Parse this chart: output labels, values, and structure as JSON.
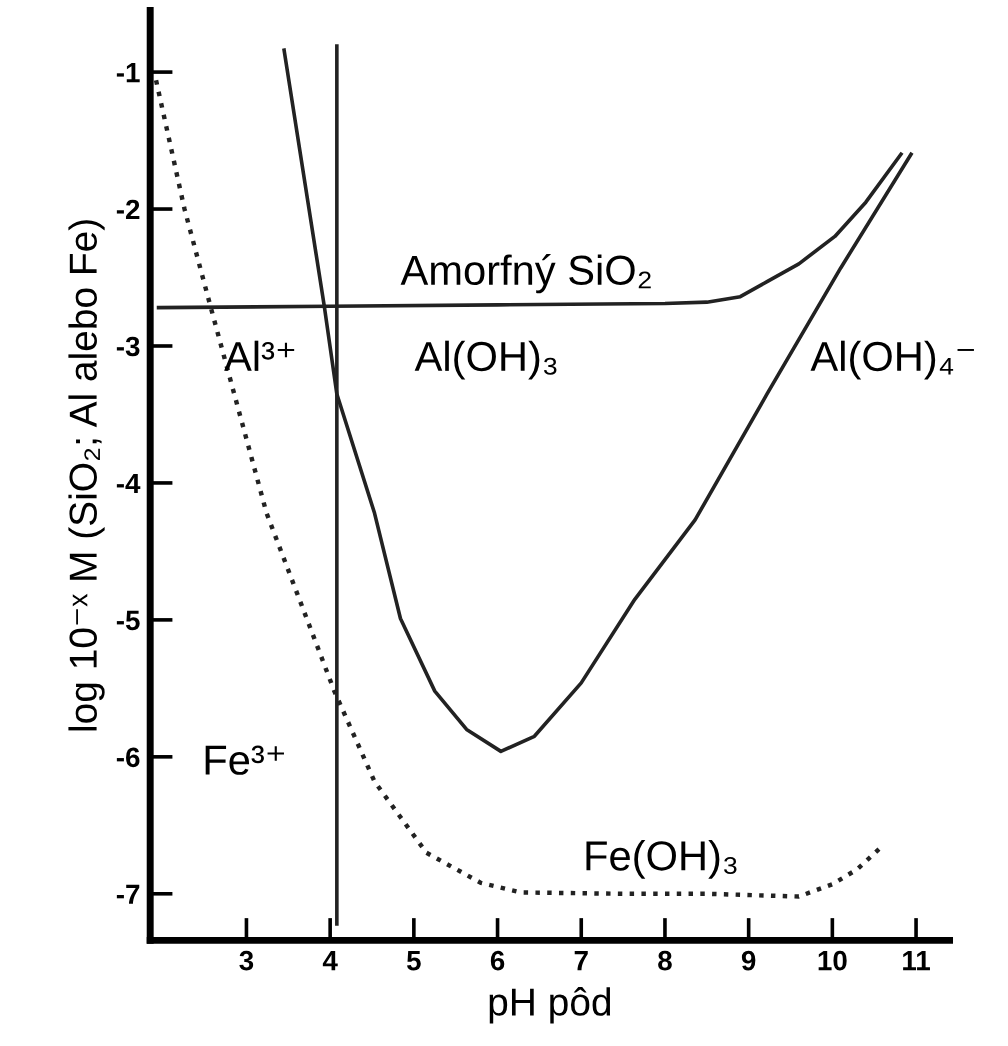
{
  "chart_data": {
    "type": "line",
    "xlabel": "pH pôd",
    "ylabel": "log 10⁻ˣ M (SiO₂; Al alebo Fe)",
    "xlim": [
      1.85,
      11.4
    ],
    "ylim": [
      -7.34,
      -0.55
    ],
    "xticks": [
      3,
      4,
      5,
      6,
      7,
      8,
      9,
      10,
      11
    ],
    "yticks": [
      -7,
      -6,
      -5,
      -4,
      -3,
      -2,
      -1
    ],
    "grid": false,
    "legend": false,
    "series": [
      {
        "color": "#222222",
        "line_style": "dotted",
        "x": [
          1.92,
          2.26,
          2.57,
          3.24,
          4.05,
          4.53,
          5.15,
          5.8,
          6.28,
          7.5,
          8.5,
          9.6,
          10.0,
          10.3,
          10.6
        ],
        "values": [
          -1.06,
          -2.0,
          -2.71,
          -4.22,
          -5.52,
          -6.18,
          -6.7,
          -6.92,
          -6.99,
          -7.0,
          -7.0,
          -7.02,
          -6.93,
          -6.82,
          -6.65
        ]
      },
      {
        "color": "#222222",
        "line_style": "solid",
        "x": [
          3.45,
          3.93,
          4.08,
          4.53,
          4.84,
          5.25,
          5.63,
          6.04,
          6.44,
          7.0,
          7.64,
          8.36,
          9.22,
          10.1,
          10.94
        ],
        "values": [
          -0.84,
          -2.71,
          -3.35,
          -4.22,
          -4.99,
          -5.52,
          -5.8,
          -5.96,
          -5.85,
          -5.46,
          -4.85,
          -4.27,
          -3.35,
          -2.43,
          -1.6
        ]
      },
      {
        "color": "#222222",
        "line_style": "solid",
        "x": [
          1.95,
          4.0,
          6.0,
          8.0,
          8.5,
          8.9,
          9.22,
          9.6,
          10.03,
          10.4,
          10.82
        ],
        "values": [
          -2.72,
          -2.71,
          -2.7,
          -2.69,
          -2.68,
          -2.64,
          -2.53,
          -2.4,
          -2.2,
          -1.95,
          -1.6
        ]
      },
      {
        "color": "#222222",
        "line_style": "solid",
        "x": [
          4.08,
          4.08
        ],
        "values": [
          -0.81,
          -7.22
        ]
      }
    ],
    "annotations": [
      "Amorfný SiO₂",
      "Al³⁺",
      "Al(OH)₃",
      "Al(OH)₄⁻",
      "Fe³⁺",
      "Fe(OH)₃"
    ]
  }
}
